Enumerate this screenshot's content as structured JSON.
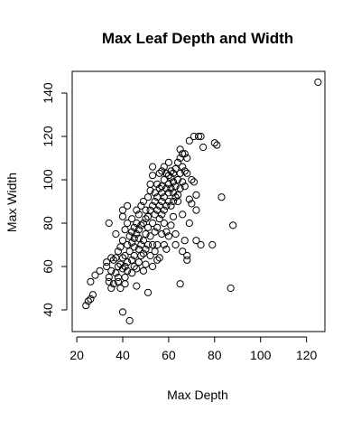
{
  "chart_data": {
    "type": "scatter",
    "title": "Max Leaf Depth and Width",
    "xlabel": "Max Depth",
    "ylabel": "Max Width",
    "xlim": [
      18,
      128
    ],
    "ylim": [
      30,
      150
    ],
    "xticks": [
      20,
      40,
      60,
      80,
      100,
      120
    ],
    "yticks": [
      40,
      60,
      80,
      100,
      120,
      140
    ],
    "grid": false,
    "legend": "none",
    "point_color": "#000000",
    "points": [
      [
        24,
        42
      ],
      [
        25,
        44
      ],
      [
        26,
        45
      ],
      [
        26,
        53
      ],
      [
        27,
        47
      ],
      [
        28,
        56
      ],
      [
        30,
        58
      ],
      [
        33,
        62
      ],
      [
        33,
        60
      ],
      [
        34,
        55
      ],
      [
        34,
        53
      ],
      [
        34,
        80
      ],
      [
        35,
        64
      ],
      [
        35,
        50
      ],
      [
        35,
        58
      ],
      [
        36,
        52
      ],
      [
        36,
        63
      ],
      [
        37,
        64
      ],
      [
        37,
        57
      ],
      [
        37,
        75
      ],
      [
        38,
        60
      ],
      [
        38,
        55
      ],
      [
        38,
        53
      ],
      [
        38,
        67
      ],
      [
        39,
        61
      ],
      [
        39,
        69
      ],
      [
        39,
        50
      ],
      [
        40,
        59
      ],
      [
        40,
        64
      ],
      [
        40,
        72
      ],
      [
        40,
        83
      ],
      [
        40,
        86
      ],
      [
        40,
        39
      ],
      [
        41,
        60
      ],
      [
        41,
        55
      ],
      [
        41,
        65
      ],
      [
        41,
        77
      ],
      [
        41,
        52
      ],
      [
        42,
        58
      ],
      [
        42,
        62
      ],
      [
        42,
        70
      ],
      [
        42,
        88
      ],
      [
        42,
        80
      ],
      [
        43,
        67
      ],
      [
        43,
        74
      ],
      [
        43,
        35
      ],
      [
        44,
        63
      ],
      [
        44,
        71
      ],
      [
        44,
        76
      ],
      [
        44,
        57
      ],
      [
        44,
        82
      ],
      [
        45,
        65
      ],
      [
        45,
        60
      ],
      [
        45,
        69
      ],
      [
        45,
        73
      ],
      [
        45,
        78
      ],
      [
        46,
        75
      ],
      [
        46,
        80
      ],
      [
        46,
        86
      ],
      [
        46,
        59
      ],
      [
        46,
        51
      ],
      [
        47,
        62
      ],
      [
        47,
        68
      ],
      [
        47,
        73
      ],
      [
        47,
        77
      ],
      [
        47,
        84
      ],
      [
        48,
        70
      ],
      [
        48,
        79
      ],
      [
        48,
        65
      ],
      [
        48,
        88
      ],
      [
        49,
        66
      ],
      [
        49,
        72
      ],
      [
        49,
        80
      ],
      [
        49,
        90
      ],
      [
        49,
        58
      ],
      [
        50,
        75
      ],
      [
        50,
        82
      ],
      [
        50,
        86
      ],
      [
        50,
        68
      ],
      [
        50,
        61
      ],
      [
        51,
        92
      ],
      [
        51,
        78
      ],
      [
        51,
        70
      ],
      [
        51,
        83
      ],
      [
        51,
        48
      ],
      [
        52,
        95
      ],
      [
        52,
        86
      ],
      [
        52,
        74
      ],
      [
        52,
        98
      ],
      [
        52,
        65
      ],
      [
        53,
        88
      ],
      [
        53,
        80
      ],
      [
        53,
        102
      ],
      [
        53,
        106
      ],
      [
        53,
        70
      ],
      [
        53,
        60
      ],
      [
        54,
        90
      ],
      [
        54,
        84
      ],
      [
        54,
        94
      ],
      [
        54,
        76
      ],
      [
        54,
        67
      ],
      [
        55,
        92
      ],
      [
        55,
        86
      ],
      [
        55,
        78
      ],
      [
        55,
        98
      ],
      [
        55,
        70
      ],
      [
        55,
        63
      ],
      [
        56,
        88
      ],
      [
        56,
        96
      ],
      [
        56,
        82
      ],
      [
        56,
        103
      ],
      [
        56,
        64
      ],
      [
        57,
        94
      ],
      [
        57,
        90
      ],
      [
        57,
        84
      ],
      [
        57,
        97
      ],
      [
        57,
        75
      ],
      [
        57,
        104
      ],
      [
        58,
        92
      ],
      [
        58,
        100
      ],
      [
        58,
        86
      ],
      [
        58,
        80
      ],
      [
        58,
        106
      ],
      [
        58,
        70
      ],
      [
        59,
        96
      ],
      [
        59,
        88
      ],
      [
        59,
        103
      ],
      [
        59,
        76
      ],
      [
        59,
        68
      ],
      [
        60,
        98
      ],
      [
        60,
        94
      ],
      [
        60,
        108
      ],
      [
        60,
        90
      ],
      [
        60,
        74
      ],
      [
        60,
        102
      ],
      [
        61,
        101
      ],
      [
        61,
        96
      ],
      [
        61,
        88
      ],
      [
        61,
        104
      ],
      [
        61,
        79
      ],
      [
        62,
        103
      ],
      [
        62,
        94
      ],
      [
        62,
        99
      ],
      [
        62,
        90
      ],
      [
        62,
        83
      ],
      [
        63,
        105
      ],
      [
        63,
        92
      ],
      [
        63,
        97
      ],
      [
        63,
        70
      ],
      [
        63,
        75
      ],
      [
        64,
        100
      ],
      [
        64,
        108
      ],
      [
        64,
        93
      ],
      [
        64,
        90
      ],
      [
        65,
        103
      ],
      [
        65,
        110
      ],
      [
        65,
        114
      ],
      [
        65,
        96
      ],
      [
        65,
        52
      ],
      [
        66,
        112
      ],
      [
        66,
        106
      ],
      [
        66,
        99
      ],
      [
        66,
        84
      ],
      [
        66,
        67
      ],
      [
        67,
        104
      ],
      [
        67,
        97
      ],
      [
        67,
        112
      ],
      [
        67,
        72
      ],
      [
        68,
        110
      ],
      [
        68,
        103
      ],
      [
        68,
        65
      ],
      [
        68,
        63
      ],
      [
        69,
        91
      ],
      [
        69,
        80
      ],
      [
        69,
        118
      ],
      [
        70,
        100
      ],
      [
        70,
        89
      ],
      [
        71,
        120
      ],
      [
        71,
        99
      ],
      [
        72,
        93
      ],
      [
        72,
        86
      ],
      [
        72,
        72
      ],
      [
        73,
        120
      ],
      [
        74,
        120
      ],
      [
        74,
        70
      ],
      [
        75,
        115
      ],
      [
        79,
        70
      ],
      [
        80,
        117
      ],
      [
        81,
        116
      ],
      [
        83,
        92
      ],
      [
        87,
        50
      ],
      [
        88,
        79
      ],
      [
        125,
        145
      ]
    ]
  }
}
